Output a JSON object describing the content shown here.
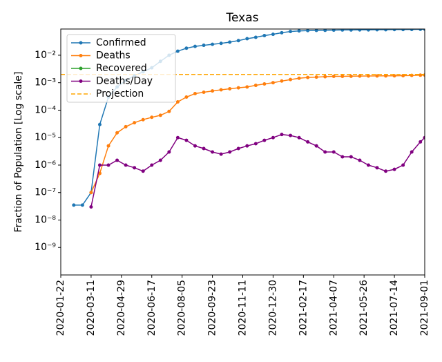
{
  "chart_data": {
    "type": "line",
    "title": "Texas",
    "y_label": "Fraction of Population [Log scale]",
    "log_y": true,
    "x": [
      "2020-02-12",
      "2020-02-26",
      "2020-03-11",
      "2020-03-25",
      "2020-04-08",
      "2020-04-22",
      "2020-05-06",
      "2020-05-20",
      "2020-06-03",
      "2020-06-17",
      "2020-07-01",
      "2020-07-15",
      "2020-07-29",
      "2020-08-12",
      "2020-08-26",
      "2020-09-09",
      "2020-09-23",
      "2020-10-07",
      "2020-10-21",
      "2020-11-04",
      "2020-11-18",
      "2020-12-02",
      "2020-12-16",
      "2020-12-30",
      "2021-01-13",
      "2021-01-27",
      "2021-02-10",
      "2021-02-24",
      "2021-03-10",
      "2021-03-24",
      "2021-04-07",
      "2021-04-21",
      "2021-05-05",
      "2021-05-19",
      "2021-06-02",
      "2021-06-16",
      "2021-06-30",
      "2021-07-14",
      "2021-07-28",
      "2021-08-11",
      "2021-08-25",
      "2021-09-01"
    ],
    "series": [
      {
        "name": "Confirmed",
        "color": "#1f77b4",
        "values": [
          3.5e-08,
          3.5e-08,
          1e-07,
          3e-05,
          0.0003,
          0.0007,
          0.0012,
          0.0018,
          0.0025,
          0.0035,
          0.006,
          0.01,
          0.014,
          0.018,
          0.021,
          0.023,
          0.025,
          0.027,
          0.03,
          0.034,
          0.04,
          0.045,
          0.052,
          0.058,
          0.066,
          0.073,
          0.077,
          0.079,
          0.08,
          0.081,
          0.082,
          0.083,
          0.083,
          0.084,
          0.084,
          0.085,
          0.085,
          0.086,
          0.086,
          0.087,
          0.088,
          0.089
        ]
      },
      {
        "name": "Deaths",
        "color": "#ff7f0e",
        "values": [
          null,
          null,
          1e-07,
          5e-07,
          5e-06,
          1.5e-05,
          2.5e-05,
          3.5e-05,
          4.5e-05,
          5.5e-05,
          6.5e-05,
          9e-05,
          0.0002,
          0.0003,
          0.0004,
          0.00045,
          0.0005,
          0.00055,
          0.0006,
          0.00065,
          0.0007,
          0.0008,
          0.0009,
          0.001,
          0.00115,
          0.0013,
          0.00145,
          0.00155,
          0.0016,
          0.00165,
          0.0017,
          0.0017,
          0.00172,
          0.00174,
          0.00175,
          0.00176,
          0.00177,
          0.00178,
          0.0018,
          0.00184,
          0.00188,
          0.0019
        ]
      },
      {
        "name": "Recovered",
        "color": "#2ca02c",
        "values": [
          null,
          null,
          null,
          null,
          null,
          null,
          null,
          null,
          null,
          null,
          null,
          null,
          null,
          null,
          null,
          null,
          null,
          null,
          null,
          null,
          null,
          null,
          null,
          null,
          null,
          null,
          null,
          null,
          null,
          null,
          null,
          null,
          null,
          null,
          null,
          null,
          null,
          null,
          null,
          null,
          null,
          null
        ]
      },
      {
        "name": "Deaths/Day",
        "color": "#800080",
        "values": [
          null,
          null,
          3e-08,
          1e-06,
          1e-06,
          1.5e-06,
          1e-06,
          8e-07,
          6e-07,
          1e-06,
          1.5e-06,
          3e-06,
          1e-05,
          8e-06,
          5e-06,
          4e-06,
          3e-06,
          2.5e-06,
          3e-06,
          4e-06,
          5e-06,
          6e-06,
          8e-06,
          1e-05,
          1.3e-05,
          1.2e-05,
          1e-05,
          7e-06,
          5e-06,
          3e-06,
          3e-06,
          2e-06,
          2e-06,
          1.5e-06,
          1e-06,
          8e-07,
          6e-07,
          7e-07,
          1e-06,
          3e-06,
          7e-06,
          1e-05
        ]
      },
      {
        "name": "Projection",
        "color": "#ffa500",
        "dashed": true,
        "hline": 0.002
      }
    ],
    "xlim": [
      "2020-01-22",
      "2021-09-01"
    ],
    "xticks": [
      "2020-01-22",
      "2020-03-11",
      "2020-04-29",
      "2020-06-17",
      "2020-08-05",
      "2020-09-23",
      "2020-11-11",
      "2020-12-30",
      "2021-02-17",
      "2021-04-07",
      "2021-05-26",
      "2021-07-14",
      "2021-09-01"
    ],
    "ylim": [
      1e-10,
      0.09
    ],
    "yticks": [
      {
        "value": 1e-09,
        "label": "10⁻⁹"
      },
      {
        "value": 1e-08,
        "label": "10⁻⁸"
      },
      {
        "value": 1e-07,
        "label": "10⁻⁷"
      },
      {
        "value": 1e-06,
        "label": "10⁻⁶"
      },
      {
        "value": 1e-05,
        "label": "10⁻⁵"
      },
      {
        "value": 0.0001,
        "label": "10⁻⁴"
      },
      {
        "value": 0.001,
        "label": "10⁻³"
      },
      {
        "value": 0.01,
        "label": "10⁻²"
      }
    ],
    "legend": "upper left"
  }
}
